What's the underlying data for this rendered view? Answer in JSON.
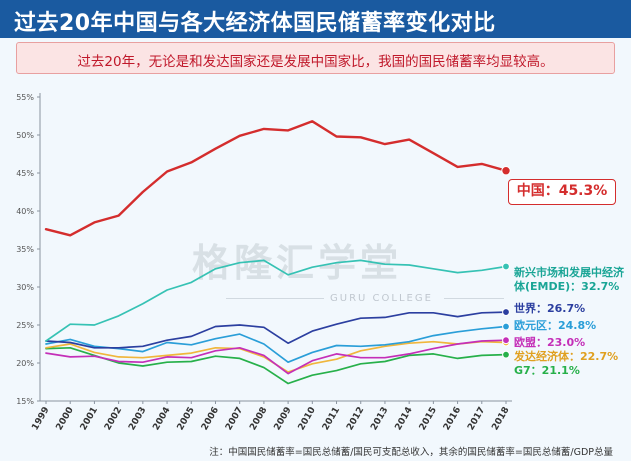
{
  "title": "过去20年中国与各大经济体国民储蓄率变化对比",
  "subtitle": "过去20年，无论是和发达国家还是发展中国家比，我国的国民储蓄率均显较高。",
  "footnote": "注：中国国民储蓄率=国民总储蓄/国民可支配总收入，其余的国民储蓄率=国民总储蓄/GDP总量",
  "watermark": {
    "main": "格隆汇学堂",
    "sub": "GURU COLLEGE"
  },
  "chart_data": {
    "type": "line",
    "title": "过去20年中国与各大经济体国民储蓄率变化对比",
    "xlabel": "",
    "ylabel": "",
    "ylim": [
      15,
      55
    ],
    "yticks": [
      15,
      20,
      25,
      30,
      35,
      40,
      45,
      50,
      55
    ],
    "ytick_labels": [
      "15%",
      "20%",
      "25%",
      "30%",
      "35%",
      "40%",
      "45%",
      "50%",
      "55%"
    ],
    "x": [
      "1999",
      "2000",
      "2001",
      "2002",
      "2003",
      "2004",
      "2005",
      "2006",
      "2007",
      "2008",
      "2009",
      "2010",
      "2011",
      "2012",
      "2013",
      "2014",
      "2015",
      "2016",
      "2017",
      "2018"
    ],
    "grid": false,
    "series": [
      {
        "name": "中国",
        "label": "中国：45.3%",
        "color": "#d42d2d",
        "values": [
          37.6,
          36.8,
          38.5,
          39.4,
          42.5,
          45.2,
          46.4,
          48.2,
          49.9,
          50.8,
          50.6,
          51.8,
          49.8,
          49.7,
          48.8,
          49.4,
          47.6,
          45.8,
          46.2,
          45.3
        ]
      },
      {
        "name": "新兴市场和发展中经济体(EMDE)",
        "label": "新兴市场和发展中经济体(EMDE)：32.7%",
        "color": "#36c2b4",
        "values": [
          22.9,
          25.1,
          25.0,
          26.2,
          27.8,
          29.6,
          30.6,
          32.4,
          33.2,
          33.5,
          31.6,
          32.6,
          33.2,
          33.5,
          33.0,
          32.9,
          32.4,
          31.9,
          32.2,
          32.7
        ]
      },
      {
        "name": "世界",
        "label": "世界：26.7%",
        "color": "#2c3fa0",
        "values": [
          22.9,
          22.7,
          22.0,
          22.0,
          22.2,
          23.0,
          23.5,
          24.8,
          25.0,
          24.7,
          22.6,
          24.2,
          25.1,
          25.9,
          26.0,
          26.6,
          26.6,
          26.1,
          26.6,
          26.7
        ]
      },
      {
        "name": "欧元区",
        "label": "欧元区：24.8%",
        "color": "#2a9ed8",
        "values": [
          22.5,
          23.1,
          22.2,
          21.9,
          21.5,
          22.7,
          22.4,
          23.2,
          23.8,
          22.5,
          20.1,
          21.4,
          22.3,
          22.2,
          22.4,
          22.8,
          23.6,
          24.1,
          24.5,
          24.8
        ]
      },
      {
        "name": "欧盟",
        "label": "欧盟：23.0%",
        "color": "#c42fb8",
        "values": [
          21.3,
          20.8,
          20.9,
          20.2,
          20.1,
          20.8,
          20.7,
          21.6,
          22.0,
          21.0,
          18.6,
          20.3,
          21.2,
          20.7,
          20.7,
          21.2,
          21.9,
          22.5,
          22.9,
          23.0
        ]
      },
      {
        "name": "发达经济体",
        "label": "发达经济体：22.7%",
        "color": "#f0b63c",
        "values": [
          22.0,
          22.5,
          21.4,
          20.8,
          20.7,
          21.0,
          21.3,
          22.0,
          21.9,
          20.8,
          18.8,
          19.9,
          20.5,
          21.6,
          22.2,
          22.6,
          22.8,
          22.5,
          22.8,
          22.7
        ]
      },
      {
        "name": "G7",
        "label": "G7：21.1%",
        "color": "#27b04a",
        "values": [
          21.9,
          22.0,
          21.0,
          20.0,
          19.6,
          20.1,
          20.2,
          20.9,
          20.6,
          19.4,
          17.3,
          18.4,
          19.0,
          19.9,
          20.2,
          21.0,
          21.2,
          20.6,
          21.0,
          21.1
        ]
      }
    ]
  }
}
